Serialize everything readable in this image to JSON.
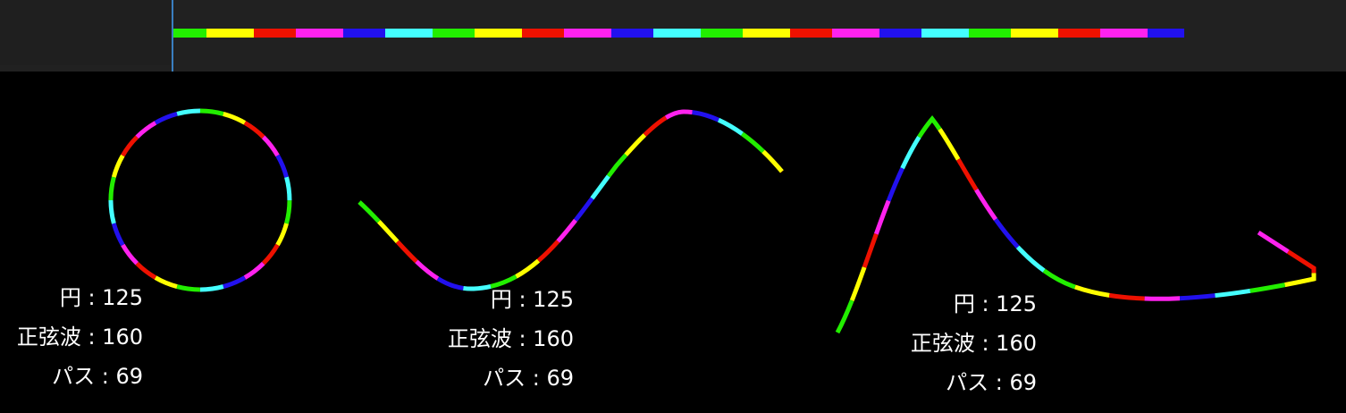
{
  "palette": [
    "#22ee00",
    "#ffff00",
    "#ee1100",
    "#ff22ee",
    "#2211ee",
    "#44ffff"
  ],
  "playhead_color": "#3a7fc0",
  "blocks": [
    {
      "lines": [
        "円 : 125",
        "正弦波 : 160",
        "パス : 69"
      ]
    },
    {
      "lines": [
        "円 : 125",
        "正弦波 : 160",
        "パス : 69"
      ]
    },
    {
      "lines": [
        "円 : 125",
        "正弦波 : 160",
        "パス : 69"
      ]
    }
  ]
}
